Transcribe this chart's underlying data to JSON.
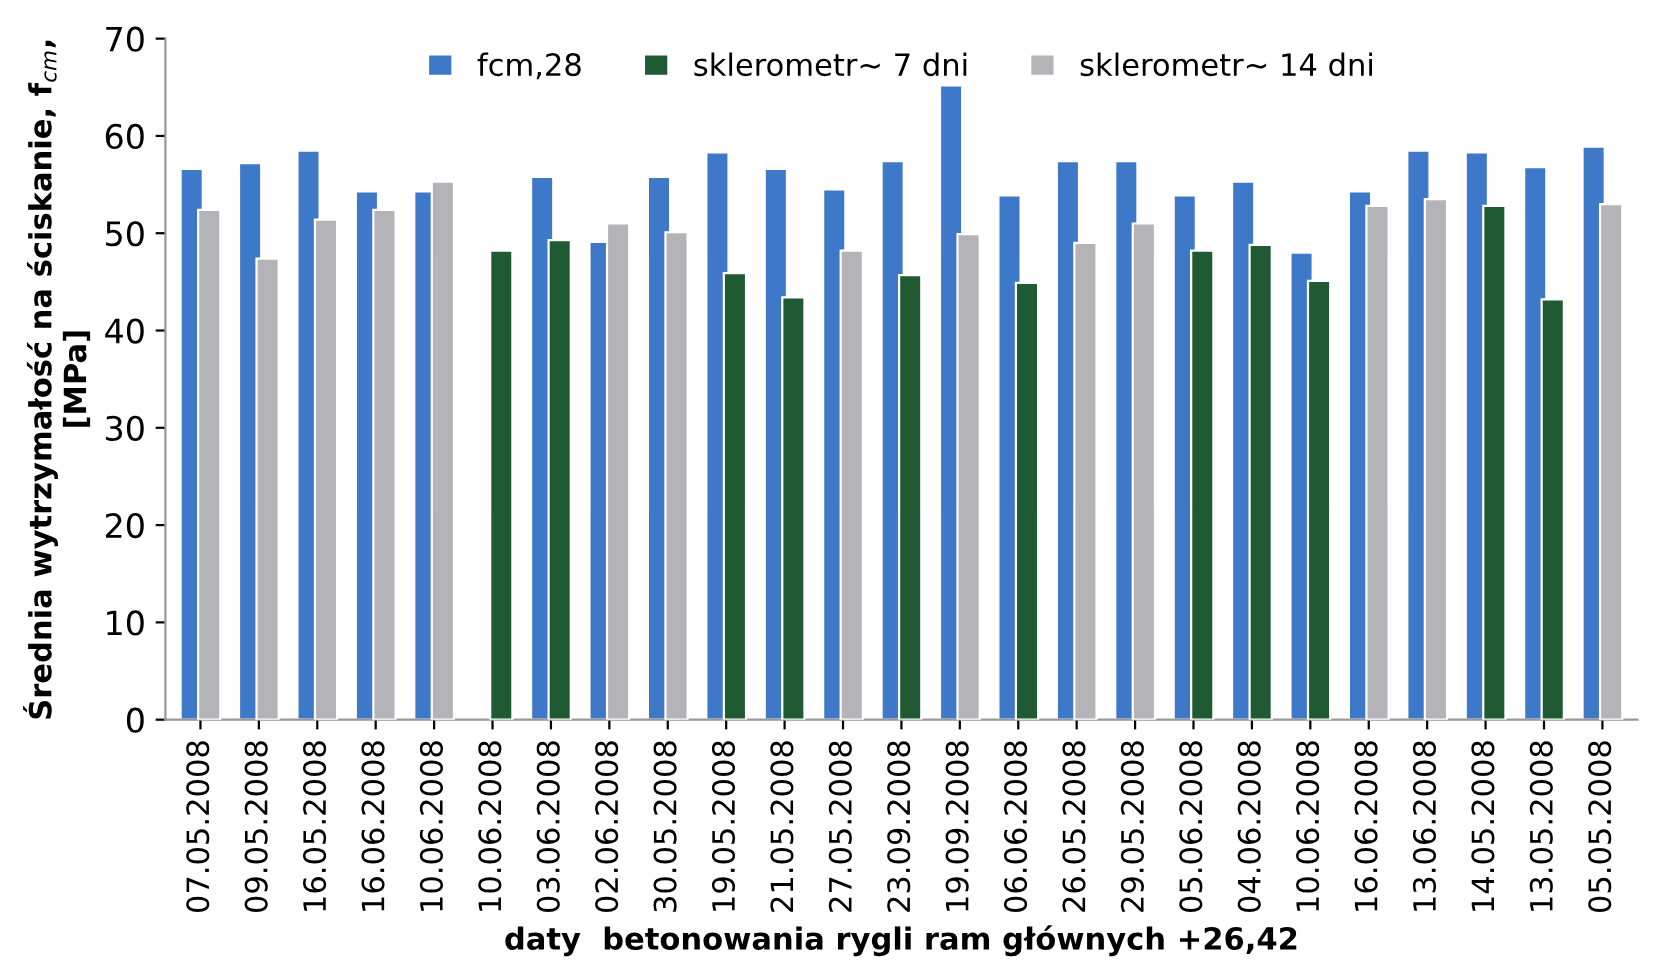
{
  "chart_data": {
    "type": "bar",
    "xlabel": "daty  betonowania rygli ram głównych +26,42",
    "ylabel": "Średnia wytrzymałość na ściskanie, f$_{cm}$,\n[MPa]",
    "categories": [
      "07.05.2008",
      "09.05.2008",
      "16.05.2008",
      "16.06.2008",
      "10.06.2008",
      "10.06.2008",
      "03.06.2008",
      "02.06.2008",
      "30.05.2008",
      "19.05.2008",
      "21.05.2008",
      "27.05.2008",
      "23.09.2008",
      "19.09.2008",
      "06.06.2008",
      "26.05.2008",
      "29.05.2008",
      "05.06.2008",
      "04.06.2008",
      "10.06.2008",
      "16.06.2008",
      "13.06.2008",
      "14.05.2008",
      "13.05.2008",
      "05.05.2008"
    ],
    "series": [
      {
        "name": "fcm,28",
        "color": "#3e78c8",
        "values": [
          56.6,
          57.2,
          58.5,
          54.3,
          54.3,
          null,
          55.8,
          49.1,
          55.8,
          58.3,
          56.6,
          54.5,
          57.4,
          65.2,
          53.9,
          57.4,
          57.4,
          53.9,
          55.3,
          48,
          54.3,
          58.5,
          58.3,
          56.8,
          58.9
        ]
      },
      {
        "name": "sklerometr~ 7 dni",
        "color": "#1f5a32",
        "values": [
          null,
          null,
          null,
          null,
          null,
          48.2,
          49.3,
          null,
          null,
          45.9,
          43.4,
          null,
          45.7,
          null,
          44.9,
          null,
          null,
          48.2,
          48.8,
          45.1,
          null,
          null,
          52.8,
          43.2,
          null
        ]
      },
      {
        "name": "sklerometr~ 14 dni",
        "color": "#b4b4b8",
        "values": [
          52.4,
          47.4,
          51.4,
          52.4,
          55.3,
          null,
          null,
          51,
          50.1,
          null,
          null,
          48.2,
          null,
          49.9,
          null,
          49,
          51,
          null,
          null,
          null,
          52.8,
          53.5,
          null,
          null,
          53
        ]
      }
    ],
    "ylim": [
      0,
      70
    ],
    "yticks": [
      0,
      10,
      20,
      30,
      40,
      50,
      60,
      70
    ],
    "grid": false,
    "legend": "top"
  }
}
